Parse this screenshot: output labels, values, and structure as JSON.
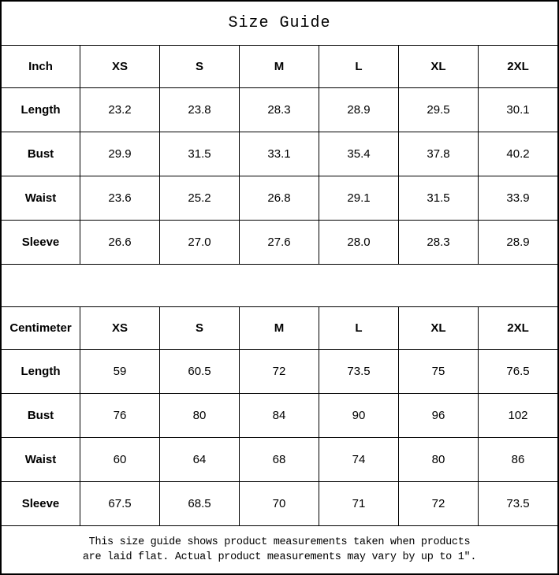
{
  "title": "Size Guide",
  "tables": [
    {
      "unit": "Inch",
      "header": [
        "Inch",
        "XS",
        "S",
        "M",
        "L",
        "XL",
        "2XL"
      ],
      "rows": [
        {
          "label": "Length",
          "values": [
            "23.2",
            "23.8",
            "28.3",
            "28.9",
            "29.5",
            "30.1"
          ]
        },
        {
          "label": "Bust",
          "values": [
            "29.9",
            "31.5",
            "33.1",
            "35.4",
            "37.8",
            "40.2"
          ]
        },
        {
          "label": "Waist",
          "values": [
            "23.6",
            "25.2",
            "26.8",
            "29.1",
            "31.5",
            "33.9"
          ]
        },
        {
          "label": "Sleeve",
          "values": [
            "26.6",
            "27.0",
            "27.6",
            "28.0",
            "28.3",
            "28.9"
          ]
        }
      ]
    },
    {
      "unit": "Centimeter",
      "header": [
        "Centimeter",
        "XS",
        "S",
        "M",
        "L",
        "XL",
        "2XL"
      ],
      "rows": [
        {
          "label": "Length",
          "values": [
            "59",
            "60.5",
            "72",
            "73.5",
            "75",
            "76.5"
          ]
        },
        {
          "label": "Bust",
          "values": [
            "76",
            "80",
            "84",
            "90",
            "96",
            "102"
          ]
        },
        {
          "label": "Waist",
          "values": [
            "60",
            "64",
            "68",
            "74",
            "80",
            "86"
          ]
        },
        {
          "label": "Sleeve",
          "values": [
            "67.5",
            "68.5",
            "70",
            "71",
            "72",
            "73.5"
          ]
        }
      ]
    }
  ],
  "footer": {
    "line1": "This size guide shows product measurements taken when products",
    "line2": "are laid flat. Actual product measurements may vary by up to 1″."
  },
  "colors": {
    "border": "#000000",
    "background": "#ffffff",
    "text": "#000000"
  }
}
